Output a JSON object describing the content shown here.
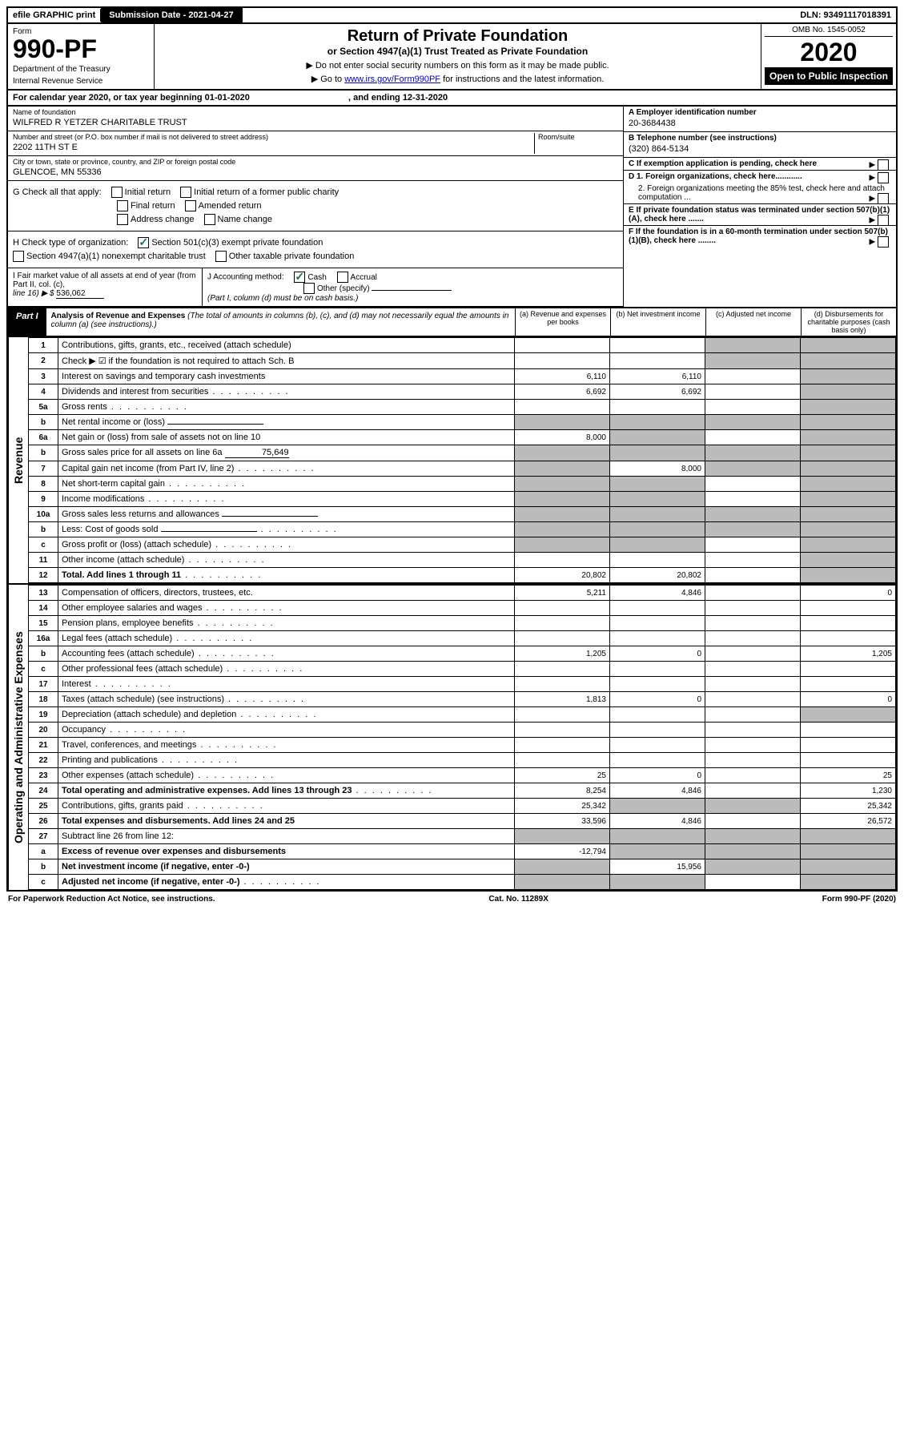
{
  "top_bar": {
    "efile": "efile GRAPHIC print",
    "submission": "Submission Date - 2021-04-27",
    "dln": "DLN: 93491117018391"
  },
  "header": {
    "form_label": "Form",
    "form_number": "990-PF",
    "dept1": "Department of the Treasury",
    "dept2": "Internal Revenue Service",
    "title": "Return of Private Foundation",
    "subtitle": "or Section 4947(a)(1) Trust Treated as Private Foundation",
    "note1": "▶ Do not enter social security numbers on this form as it may be made public.",
    "note2_pre": "▶ Go to ",
    "note2_link": "www.irs.gov/Form990PF",
    "note2_post": " for instructions and the latest information.",
    "omb": "OMB No. 1545-0052",
    "year": "2020",
    "open": "Open to Public Inspection"
  },
  "cal_year": {
    "text_pre": "For calendar year 2020, or tax year beginning 01-01-2020",
    "text_mid": ", and ending 12-31-2020"
  },
  "info": {
    "name_label": "Name of foundation",
    "name_value": "WILFRED R YETZER CHARITABLE TRUST",
    "addr_label": "Number and street (or P.O. box number if mail is not delivered to street address)",
    "addr_value": "2202 11TH ST E",
    "room_label": "Room/suite",
    "city_label": "City or town, state or province, country, and ZIP or foreign postal code",
    "city_value": "GLENCOE, MN  55336",
    "a_label": "A Employer identification number",
    "a_value": "20-3684438",
    "b_label": "B Telephone number (see instructions)",
    "b_value": "(320) 864-5134",
    "c_label": "C If exemption application is pending, check here",
    "d1_label": "D 1. Foreign organizations, check here............",
    "d2_label": "2. Foreign organizations meeting the 85% test, check here and attach computation ...",
    "e_label": "E  If private foundation status was terminated under section 507(b)(1)(A), check here .......",
    "f_label": "F  If the foundation is in a 60-month termination under section 507(b)(1)(B), check here ........"
  },
  "g": {
    "label": "G Check all that apply:",
    "opt1": "Initial return",
    "opt1b": "Initial return of a former public charity",
    "opt2": "Final return",
    "opt2b": "Amended return",
    "opt3": "Address change",
    "opt3b": "Name change"
  },
  "h": {
    "label": "H Check type of organization:",
    "opt1": "Section 501(c)(3) exempt private foundation",
    "opt2": "Section 4947(a)(1) nonexempt charitable trust",
    "opt3": "Other taxable private foundation"
  },
  "i": {
    "label": "I Fair market value of all assets at end of year (from Part II, col. (c),",
    "line16": "line 16) ▶ $",
    "value": "536,062"
  },
  "j": {
    "label": "J Accounting method:",
    "cash": "Cash",
    "accrual": "Accrual",
    "other": "Other (specify)",
    "note": "(Part I, column (d) must be on cash basis.)"
  },
  "part1": {
    "label": "Part I",
    "title": "Analysis of Revenue and Expenses",
    "note": " (The total of amounts in columns (b), (c), and (d) may not necessarily equal the amounts in column (a) (see instructions).)",
    "col_a": "(a)   Revenue and expenses per books",
    "col_b": "(b)  Net investment income",
    "col_c": "(c)  Adjusted net income",
    "col_d": "(d)  Disbursements for charitable purposes (cash basis only)"
  },
  "side_labels": {
    "revenue": "Revenue",
    "expenses": "Operating and Administrative Expenses"
  },
  "rows": [
    {
      "n": "1",
      "desc": "Contributions, gifts, grants, etc., received (attach schedule)",
      "a": "",
      "b": "",
      "c": "shade",
      "d": "shade"
    },
    {
      "n": "2",
      "desc": "Check ▶ ☑ if the foundation is not required to attach Sch. B",
      "a": "",
      "b": "",
      "c": "shade",
      "d": "shade",
      "dots_row": true
    },
    {
      "n": "3",
      "desc": "Interest on savings and temporary cash investments",
      "a": "6,110",
      "b": "6,110",
      "c": "",
      "d": "shade"
    },
    {
      "n": "4",
      "desc": "Dividends and interest from securities",
      "a": "6,692",
      "b": "6,692",
      "c": "",
      "d": "shade",
      "dots": true
    },
    {
      "n": "5a",
      "desc": "Gross rents",
      "a": "",
      "b": "",
      "c": "",
      "d": "shade",
      "dots": true
    },
    {
      "n": "b",
      "desc": "Net rental income or (loss)",
      "a": "shade",
      "b": "shade",
      "c": "shade",
      "d": "shade",
      "inline_blank": true
    },
    {
      "n": "6a",
      "desc": "Net gain or (loss) from sale of assets not on line 10",
      "a": "8,000",
      "b": "shade",
      "c": "",
      "d": "shade"
    },
    {
      "n": "b",
      "desc": "Gross sales price for all assets on line 6a",
      "a": "shade",
      "b": "shade",
      "c": "shade",
      "d": "shade",
      "inline_value": "75,649"
    },
    {
      "n": "7",
      "desc": "Capital gain net income (from Part IV, line 2)",
      "a": "shade",
      "b": "8,000",
      "c": "shade",
      "d": "shade",
      "dots": true
    },
    {
      "n": "8",
      "desc": "Net short-term capital gain",
      "a": "shade",
      "b": "shade",
      "c": "",
      "d": "shade",
      "dots": true
    },
    {
      "n": "9",
      "desc": "Income modifications",
      "a": "shade",
      "b": "shade",
      "c": "",
      "d": "shade",
      "dots": true
    },
    {
      "n": "10a",
      "desc": "Gross sales less returns and allowances",
      "a": "shade",
      "b": "shade",
      "c": "shade",
      "d": "shade",
      "inline_blank": true
    },
    {
      "n": "b",
      "desc": "Less: Cost of goods sold",
      "a": "shade",
      "b": "shade",
      "c": "shade",
      "d": "shade",
      "inline_blank": true,
      "dots": true
    },
    {
      "n": "c",
      "desc": "Gross profit or (loss) (attach schedule)",
      "a": "shade",
      "b": "shade",
      "c": "",
      "d": "shade",
      "dots": true
    },
    {
      "n": "11",
      "desc": "Other income (attach schedule)",
      "a": "",
      "b": "",
      "c": "",
      "d": "shade",
      "dots": true
    },
    {
      "n": "12",
      "desc": "Total. Add lines 1 through 11",
      "a": "20,802",
      "b": "20,802",
      "c": "",
      "d": "shade",
      "bold": true,
      "dots": true
    }
  ],
  "exp_rows": [
    {
      "n": "13",
      "desc": "Compensation of officers, directors, trustees, etc.",
      "a": "5,211",
      "b": "4,846",
      "c": "",
      "d": "0"
    },
    {
      "n": "14",
      "desc": "Other employee salaries and wages",
      "a": "",
      "b": "",
      "c": "",
      "d": "",
      "dots": true
    },
    {
      "n": "15",
      "desc": "Pension plans, employee benefits",
      "a": "",
      "b": "",
      "c": "",
      "d": "",
      "dots": true
    },
    {
      "n": "16a",
      "desc": "Legal fees (attach schedule)",
      "a": "",
      "b": "",
      "c": "",
      "d": "",
      "dots": true
    },
    {
      "n": "b",
      "desc": "Accounting fees (attach schedule)",
      "a": "1,205",
      "b": "0",
      "c": "",
      "d": "1,205",
      "dots": true
    },
    {
      "n": "c",
      "desc": "Other professional fees (attach schedule)",
      "a": "",
      "b": "",
      "c": "",
      "d": "",
      "dots": true
    },
    {
      "n": "17",
      "desc": "Interest",
      "a": "",
      "b": "",
      "c": "",
      "d": "",
      "dots": true
    },
    {
      "n": "18",
      "desc": "Taxes (attach schedule) (see instructions)",
      "a": "1,813",
      "b": "0",
      "c": "",
      "d": "0",
      "dots": true
    },
    {
      "n": "19",
      "desc": "Depreciation (attach schedule) and depletion",
      "a": "",
      "b": "",
      "c": "",
      "d": "shade",
      "dots": true
    },
    {
      "n": "20",
      "desc": "Occupancy",
      "a": "",
      "b": "",
      "c": "",
      "d": "",
      "dots": true
    },
    {
      "n": "21",
      "desc": "Travel, conferences, and meetings",
      "a": "",
      "b": "",
      "c": "",
      "d": "",
      "dots": true
    },
    {
      "n": "22",
      "desc": "Printing and publications",
      "a": "",
      "b": "",
      "c": "",
      "d": "",
      "dots": true
    },
    {
      "n": "23",
      "desc": "Other expenses (attach schedule)",
      "a": "25",
      "b": "0",
      "c": "",
      "d": "25",
      "dots": true
    },
    {
      "n": "24",
      "desc": "Total operating and administrative expenses. Add lines 13 through 23",
      "a": "8,254",
      "b": "4,846",
      "c": "",
      "d": "1,230",
      "bold": true,
      "dots": true
    },
    {
      "n": "25",
      "desc": "Contributions, gifts, grants paid",
      "a": "25,342",
      "b": "shade",
      "c": "shade",
      "d": "25,342",
      "dots": true
    },
    {
      "n": "26",
      "desc": "Total expenses and disbursements. Add lines 24 and 25",
      "a": "33,596",
      "b": "4,846",
      "c": "",
      "d": "26,572",
      "bold": true
    },
    {
      "n": "27",
      "desc": "Subtract line 26 from line 12:",
      "a": "shade",
      "b": "shade",
      "c": "shade",
      "d": "shade"
    },
    {
      "n": "a",
      "desc": "Excess of revenue over expenses and disbursements",
      "a": "-12,794",
      "b": "shade",
      "c": "shade",
      "d": "shade",
      "bold": true
    },
    {
      "n": "b",
      "desc": "Net investment income (if negative, enter -0-)",
      "a": "shade",
      "b": "15,956",
      "c": "shade",
      "d": "shade",
      "bold": true
    },
    {
      "n": "c",
      "desc": "Adjusted net income (if negative, enter -0-)",
      "a": "shade",
      "b": "shade",
      "c": "",
      "d": "shade",
      "bold": true,
      "dots": true
    }
  ],
  "footer": {
    "left": "For Paperwork Reduction Act Notice, see instructions.",
    "mid": "Cat. No. 11289X",
    "right": "Form 990-PF (2020)"
  }
}
